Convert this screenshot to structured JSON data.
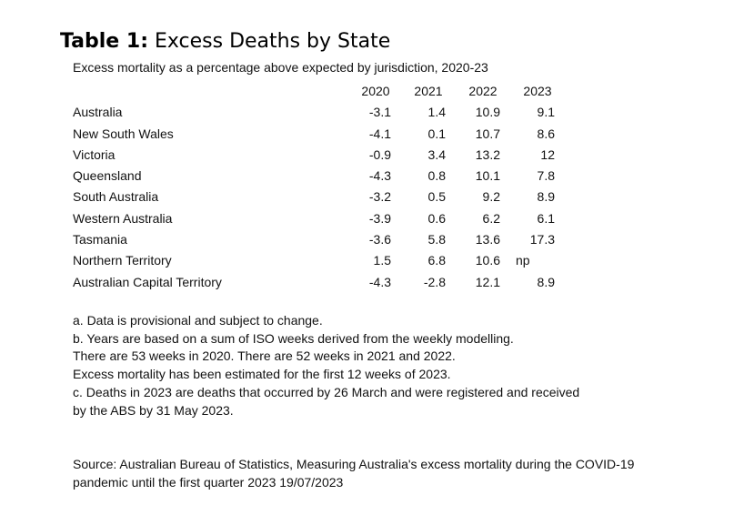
{
  "title": {
    "lead": "Table 1:",
    "rest": " Excess Deaths by State"
  },
  "subtitle": "Excess mortality as a percentage above expected by jurisdiction, 2020-23",
  "table": {
    "columns": [
      "2020",
      "2021",
      "2022",
      "2023"
    ],
    "rows": [
      {
        "label": "Australia",
        "values": [
          "-3.1",
          "1.4",
          "10.9",
          "9.1"
        ]
      },
      {
        "label": "New South Wales",
        "values": [
          "-4.1",
          "0.1",
          "10.7",
          "8.6"
        ]
      },
      {
        "label": "Victoria",
        "values": [
          "-0.9",
          "3.4",
          "13.2",
          "12"
        ]
      },
      {
        "label": "Queensland",
        "values": [
          "-4.3",
          "0.8",
          "10.1",
          "7.8"
        ]
      },
      {
        "label": "South Australia",
        "values": [
          "-3.2",
          "0.5",
          "9.2",
          "8.9"
        ]
      },
      {
        "label": "Western Australia",
        "values": [
          "-3.9",
          "0.6",
          "6.2",
          "6.1"
        ]
      },
      {
        "label": "Tasmania",
        "values": [
          "-3.6",
          "5.8",
          "13.6",
          "17.3"
        ]
      },
      {
        "label": "Northern Territory",
        "values": [
          "1.5",
          "6.8",
          "10.6",
          "np"
        ]
      },
      {
        "label": "Australian Capital Territory",
        "values": [
          "-4.3",
          "-2.8",
          "12.1",
          "8.9"
        ]
      }
    ]
  },
  "notes": [
    "a. Data is provisional and subject to change.",
    "b. Years are based on a sum of ISO weeks derived from the weekly modelling.",
    "There are 53 weeks in 2020. There are 52 weeks in 2021 and 2022.",
    "Excess mortality has been estimated for the first 12 weeks of 2023.",
    "c. Deaths in 2023 are deaths that occurred by 26 March and were registered and received",
    "by the ABS by 31 May 2023."
  ],
  "source": [
    "Source: Australian Bureau of Statistics, Measuring Australia's excess mortality during the COVID-19",
    "pandemic until the first quarter 2023 19/07/2023"
  ]
}
